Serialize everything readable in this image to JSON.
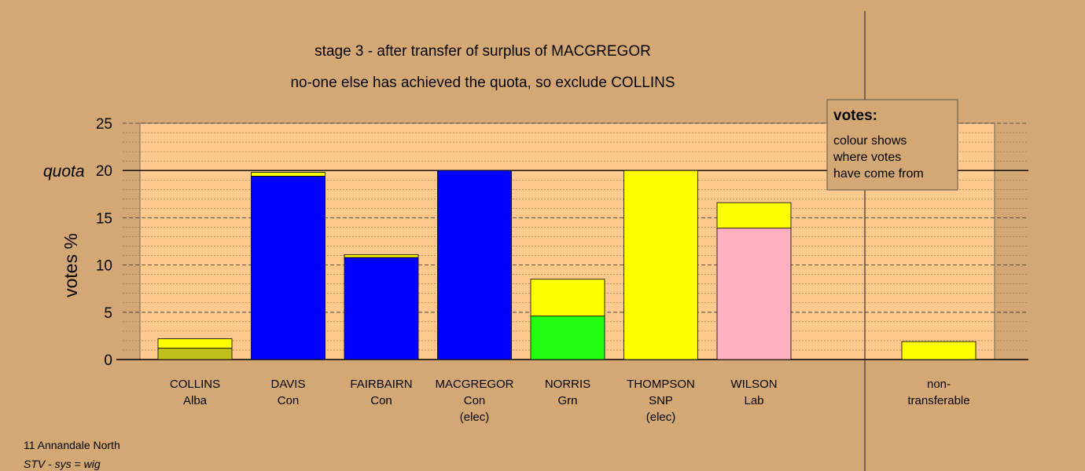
{
  "chart_data": {
    "type": "bar",
    "title": "stage 3 - after transfer of surplus of MACGREGOR",
    "subtitle": "no-one else has achieved the quota, so exclude COLLINS",
    "ylabel": "votes %",
    "ylim": [
      0,
      25
    ],
    "yticks": [
      0,
      5,
      10,
      15,
      20,
      25
    ],
    "quota": 20,
    "quota_label": "quota",
    "grid": true,
    "categories": [
      {
        "name": "COLLINS",
        "party": "Alba",
        "note": ""
      },
      {
        "name": "DAVIS",
        "party": "Con",
        "note": ""
      },
      {
        "name": "FAIRBAIRN",
        "party": "Con",
        "note": ""
      },
      {
        "name": "MACGREGOR",
        "party": "Con",
        "note": "(elec)"
      },
      {
        "name": "NORRIS",
        "party": "Grn",
        "note": ""
      },
      {
        "name": "THOMPSON",
        "party": "SNP",
        "note": "(elec)"
      },
      {
        "name": "WILSON",
        "party": "Lab",
        "note": ""
      }
    ],
    "bars": [
      {
        "segments": [
          {
            "value": 1.2,
            "color": "#bfbf1a"
          },
          {
            "value": 1.0,
            "color": "#ffff00"
          }
        ]
      },
      {
        "segments": [
          {
            "value": 19.4,
            "color": "#0000ff"
          },
          {
            "value": 0.4,
            "color": "#ffff00"
          }
        ]
      },
      {
        "segments": [
          {
            "value": 10.8,
            "color": "#0000ff"
          },
          {
            "value": 0.3,
            "color": "#ffff00"
          }
        ]
      },
      {
        "segments": [
          {
            "value": 20.0,
            "color": "#0000ff"
          }
        ]
      },
      {
        "segments": [
          {
            "value": 4.6,
            "color": "#22ff11"
          },
          {
            "value": 3.9,
            "color": "#ffff00"
          }
        ]
      },
      {
        "segments": [
          {
            "value": 20.0,
            "color": "#ffff00"
          }
        ]
      },
      {
        "segments": [
          {
            "value": 13.9,
            "color": "#ffb0c0"
          },
          {
            "value": 2.7,
            "color": "#ffff00"
          }
        ]
      }
    ],
    "nontransferable": {
      "label_line1": "non-",
      "label_line2": "transferable",
      "segments": [
        {
          "value": 1.9,
          "color": "#ffff00"
        }
      ]
    },
    "legend": {
      "title": "votes:",
      "lines": [
        "colour shows",
        "where votes",
        "have come from"
      ],
      "placement": "top-right"
    },
    "colors": {
      "background": "#d4a874",
      "plot_area": "#ffc98e"
    }
  },
  "footer": {
    "line1": "11 Annandale North",
    "line2": "STV - sys = wig"
  }
}
